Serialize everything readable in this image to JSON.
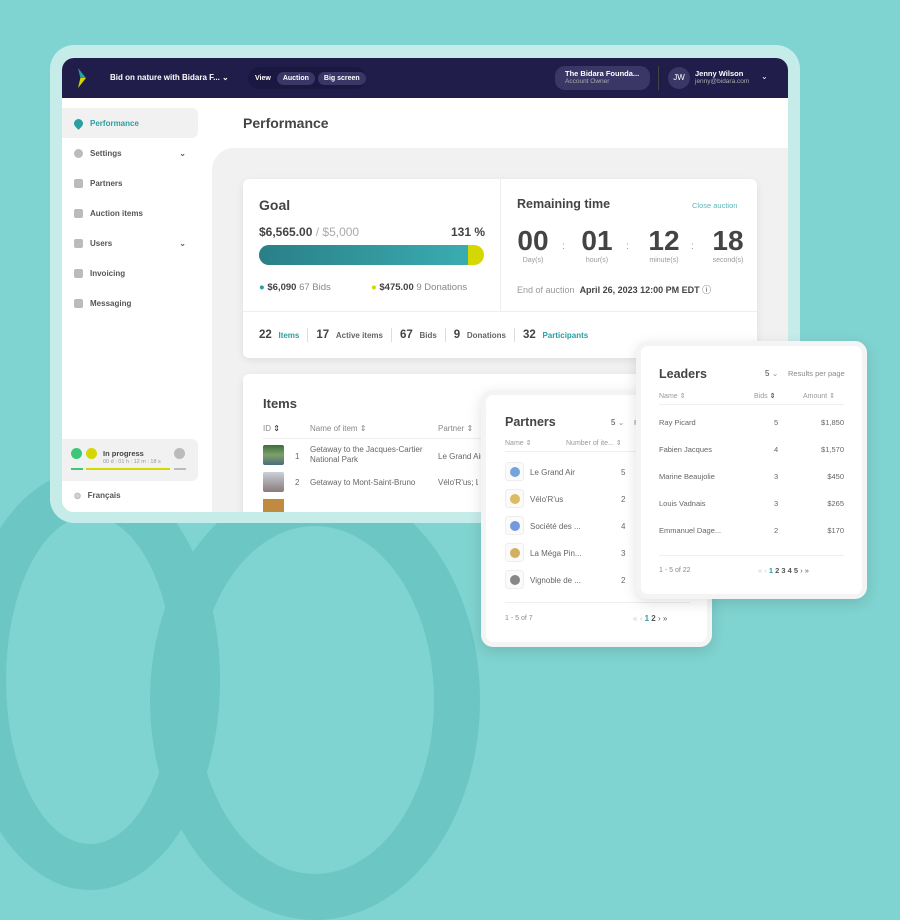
{
  "header": {
    "event_title": "Bid on nature with Bidara F...",
    "view_label": "View",
    "view_options": [
      "Auction",
      "Big screen"
    ],
    "org_name": "The Bidara Founda...",
    "org_role": "Account Owner",
    "user_initials": "JW",
    "user_name": "Jenny Wilson",
    "user_email": "jenny@bidara.com"
  },
  "sidebar": {
    "items": [
      {
        "label": "Performance",
        "active": true
      },
      {
        "label": "Settings",
        "expandable": true
      },
      {
        "label": "Partners"
      },
      {
        "label": "Auction items"
      },
      {
        "label": "Users",
        "expandable": true
      },
      {
        "label": "Invoicing"
      },
      {
        "label": "Messaging"
      }
    ],
    "status": {
      "label": "In progress",
      "countdown": "00 d : 01 h : 12 m : 18 s"
    },
    "language": "Français"
  },
  "page": {
    "title": "Performance"
  },
  "goal": {
    "title": "Goal",
    "raised": "$6,565.00",
    "target": "/ $5,000",
    "percent_text": "131 %",
    "bids_fraction": 0.928,
    "bids_amount": "$6,090",
    "bids_count": "67 Bids",
    "donations_amount": "$475.00",
    "donations_count": "9 Donations",
    "colors": {
      "bids": "#2a9ea0",
      "donations": "#d4d800"
    }
  },
  "remaining": {
    "title": "Remaining time",
    "close_label": "Close auction",
    "units": [
      {
        "value": "00",
        "label": "Day(s)"
      },
      {
        "value": "01",
        "label": "hour(s)"
      },
      {
        "value": "12",
        "label": "minute(s)"
      },
      {
        "value": "18",
        "label": "second(s)"
      }
    ],
    "sep": ":",
    "end_label": "End of auction",
    "end_value": "April 26, 2023 12:00 PM EDT"
  },
  "stats": [
    {
      "n": "22",
      "label": "Items",
      "link": true
    },
    {
      "n": "17",
      "label": "Active items"
    },
    {
      "n": "67",
      "label": "Bids"
    },
    {
      "n": "9",
      "label": "Donations"
    },
    {
      "n": "32",
      "label": "Participants",
      "link": true
    }
  ],
  "items": {
    "title": "Items",
    "columns": [
      "ID",
      "Name of item",
      "Partner"
    ],
    "rows": [
      {
        "id": "1",
        "name": "Getaway to the Jacques-Cartier National Park",
        "partner": "Le Grand Air"
      },
      {
        "id": "2",
        "name": "Getaway to Mont-Saint-Bruno",
        "partner": "Vélo'R'us; Le"
      }
    ]
  },
  "partners": {
    "title": "Partners",
    "per_page": "5",
    "per_page_label": "Re",
    "columns": [
      "Name",
      "Number of ite..."
    ],
    "rows": [
      {
        "name": "Le Grand Air",
        "count": "5"
      },
      {
        "name": "Vélo'R'us",
        "count": "2"
      },
      {
        "name": "Société des ...",
        "count": "4"
      },
      {
        "name": "La Méga Pin...",
        "count": "3"
      },
      {
        "name": "Vignoble de ...",
        "count": "2"
      }
    ],
    "range": "1 - 5 of 7",
    "pages": [
      "1",
      "2"
    ]
  },
  "leaders": {
    "title": "Leaders",
    "per_page": "5",
    "per_page_label": "Results per page",
    "columns": [
      "Name",
      "Bids",
      "Amount"
    ],
    "rows": [
      {
        "name": "Ray Picard",
        "bids": "5",
        "amount": "$1,850"
      },
      {
        "name": "Fabien Jacques",
        "bids": "4",
        "amount": "$1,570"
      },
      {
        "name": "Marine Beaujolie",
        "bids": "3",
        "amount": "$450"
      },
      {
        "name": "Louis Vadnais",
        "bids": "3",
        "amount": "$265"
      },
      {
        "name": "Emmanuel Dage...",
        "bids": "2",
        "amount": "$170"
      }
    ],
    "range": "1 - 5 of 22",
    "pages": [
      "1",
      "2",
      "3",
      "4",
      "5"
    ]
  }
}
